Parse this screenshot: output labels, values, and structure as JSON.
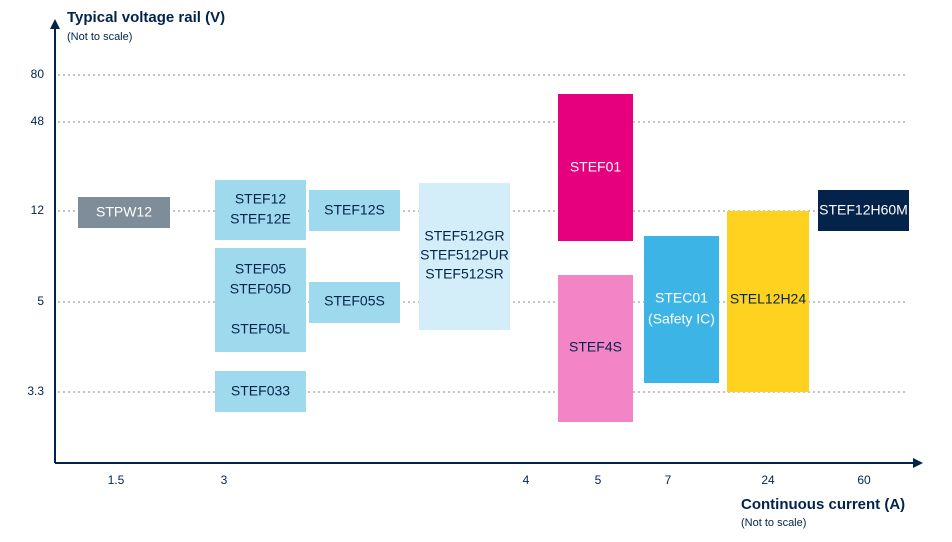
{
  "y_axis": {
    "title": "Typical voltage rail (V)",
    "note": "(Not to scale)",
    "ticks": [
      "80",
      "48",
      "12",
      "5",
      "3.3"
    ]
  },
  "x_axis": {
    "title": "Continuous current (A)",
    "note": "(Not to scale)",
    "ticks": [
      "1.5",
      "3",
      "4",
      "5",
      "7",
      "24",
      "60"
    ]
  },
  "boxes": [
    {
      "lines": [
        "STPW12"
      ]
    },
    {
      "lines": [
        "STEF12",
        "STEF12E"
      ]
    },
    {
      "lines": [
        "STEF05",
        "STEF05D",
        "STEF05L"
      ]
    },
    {
      "lines": [
        "STEF033"
      ]
    },
    {
      "lines": [
        "STEF12S"
      ]
    },
    {
      "lines": [
        "STEF05S"
      ]
    },
    {
      "lines": [
        "STEF512GR",
        "STEF512PUR",
        "STEF512SR"
      ]
    },
    {
      "lines": [
        "STEF01"
      ]
    },
    {
      "lines": [
        "STEF4S"
      ]
    },
    {
      "lines": [
        "STEC01",
        "(Safety IC)"
      ]
    },
    {
      "lines": [
        "STEL12H24"
      ]
    },
    {
      "lines": [
        "STEF12H60M"
      ]
    }
  ]
}
